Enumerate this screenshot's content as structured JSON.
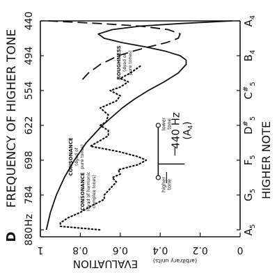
{
  "panel_label": "D",
  "chart_data": {
    "type": "line",
    "title": "FREQUENCY OF HIGHER TONE",
    "ylabel": "EVALUATION",
    "ylabel_unit": "(arbitrary units)",
    "xlabel": "HIGHER NOTE",
    "ylim": [
      0,
      1.0
    ],
    "x_note_range": [
      0,
      12
    ],
    "y_ticks": [
      {
        "value": 0,
        "label": "0"
      },
      {
        "value": 0.2,
        "label": "0.2"
      },
      {
        "value": 0.4,
        "label": "0.4"
      },
      {
        "value": 0.6,
        "label": "0.6"
      },
      {
        "value": 0.8,
        "label": "0.8"
      },
      {
        "value": 1,
        "label": "1"
      }
    ],
    "frequency_ticks": [
      {
        "note_index": 0,
        "label": "440"
      },
      {
        "note_index": 2,
        "label": "494"
      },
      {
        "note_index": 4,
        "label": "554"
      },
      {
        "note_index": 6,
        "label": "622"
      },
      {
        "note_index": 8,
        "label": "698"
      },
      {
        "note_index": 10,
        "label": "784"
      },
      {
        "note_index": 12,
        "label": "880",
        "unit": "Hz"
      }
    ],
    "note_ticks": [
      {
        "note_index": 0,
        "letter": "A",
        "sub": "4",
        "accidental": ""
      },
      {
        "note_index": 2,
        "letter": "B",
        "sub": "4",
        "accidental": ""
      },
      {
        "note_index": 4,
        "letter": "C",
        "sub": "5",
        "accidental": "#"
      },
      {
        "note_index": 6,
        "letter": "D",
        "sub": "5",
        "accidental": "#"
      },
      {
        "note_index": 8,
        "letter": "F",
        "sub": "5",
        "accidental": ""
      },
      {
        "note_index": 10,
        "letter": "G",
        "sub": "5",
        "accidental": ""
      },
      {
        "note_index": 12,
        "letter": "A",
        "sub": "5",
        "accidental": ""
      }
    ],
    "series": [
      {
        "key": "consonance_pure",
        "style": "solid",
        "label_lines": [
          "CONSONANCE",
          "(dyad of",
          "pure tones)"
        ],
        "label_at": {
          "note_index": 7.8,
          "value": 0.84
        },
        "points": [
          [
            0,
            0.04
          ],
          [
            0.15,
            0.3
          ],
          [
            0.3,
            0.5
          ],
          [
            0.5,
            0.64
          ],
          [
            0.75,
            0.71
          ],
          [
            1.0,
            0.68
          ],
          [
            1.25,
            0.59
          ],
          [
            1.5,
            0.47
          ],
          [
            1.75,
            0.37
          ],
          [
            2.0,
            0.3
          ],
          [
            2.25,
            0.27
          ],
          [
            2.5,
            0.27
          ],
          [
            3.0,
            0.31
          ],
          [
            3.5,
            0.38
          ],
          [
            4.0,
            0.46
          ],
          [
            4.5,
            0.53
          ],
          [
            5.0,
            0.59
          ],
          [
            6.0,
            0.69
          ],
          [
            7.0,
            0.77
          ],
          [
            8.0,
            0.83
          ],
          [
            9.0,
            0.88
          ],
          [
            10.0,
            0.92
          ],
          [
            11.0,
            0.95
          ],
          [
            12.0,
            0.97
          ]
        ]
      },
      {
        "key": "roughness",
        "style": "dashed",
        "label_lines": [
          "ROUGHNESS",
          "(dyad of",
          "pure tones)"
        ],
        "label_at": {
          "note_index": 2.4,
          "value": 0.6
        },
        "points": [
          [
            0,
            0.96
          ],
          [
            0.15,
            0.7
          ],
          [
            0.3,
            0.5
          ],
          [
            0.5,
            0.36
          ],
          [
            0.75,
            0.3
          ],
          [
            1.0,
            0.31
          ],
          [
            1.25,
            0.37
          ],
          [
            1.5,
            0.46
          ],
          [
            1.75,
            0.54
          ],
          [
            2.0,
            0.61
          ],
          [
            2.5,
            0.7
          ],
          [
            3.0,
            0.76
          ],
          [
            3.5,
            0.8
          ]
        ]
      },
      {
        "key": "consonance_harmonic",
        "style": "dotted",
        "label_lines": [
          "CONSONANCE",
          "(dyad of harmonic",
          "complex tones)"
        ],
        "label_at": {
          "note_index": 9.8,
          "value": 0.78
        },
        "points": [
          [
            2.6,
            0.5
          ],
          [
            3.0,
            0.55
          ],
          [
            3.3,
            0.6
          ],
          [
            3.5,
            0.56
          ],
          [
            3.8,
            0.6
          ],
          [
            4.0,
            0.65
          ],
          [
            4.3,
            0.6
          ],
          [
            4.6,
            0.62
          ],
          [
            5.0,
            0.7
          ],
          [
            5.4,
            0.66
          ],
          [
            5.8,
            0.67
          ],
          [
            6.0,
            0.7
          ],
          [
            6.3,
            0.66
          ],
          [
            6.6,
            0.66
          ],
          [
            7.0,
            0.72
          ],
          [
            7.2,
            0.75
          ],
          [
            7.5,
            0.61
          ],
          [
            7.8,
            0.51
          ],
          [
            8.0,
            0.47
          ],
          [
            8.25,
            0.51
          ],
          [
            8.55,
            0.61
          ],
          [
            8.8,
            0.6
          ],
          [
            9.0,
            0.64
          ],
          [
            9.25,
            0.62
          ],
          [
            9.5,
            0.64
          ],
          [
            9.75,
            0.66
          ],
          [
            10.0,
            0.68
          ],
          [
            10.25,
            0.68
          ],
          [
            10.6,
            0.74
          ],
          [
            11.0,
            0.8
          ],
          [
            11.3,
            0.86
          ],
          [
            11.6,
            0.9
          ],
          [
            11.8,
            0.9
          ],
          [
            12.0,
            0.7
          ]
        ]
      }
    ],
    "annotation": {
      "lower_tone_label": [
        "lower",
        "tone"
      ],
      "higher_tone_label": [
        "higher",
        "tone"
      ],
      "lower_tone_at": {
        "note_index": 6.0,
        "value": 0.41
      },
      "higher_tone_at": {
        "note_index": 9.0,
        "value": 0.41
      },
      "frequency_label": "440 Hz",
      "note_label_letter": "A",
      "note_label_sub": "4"
    },
    "grid": false
  }
}
